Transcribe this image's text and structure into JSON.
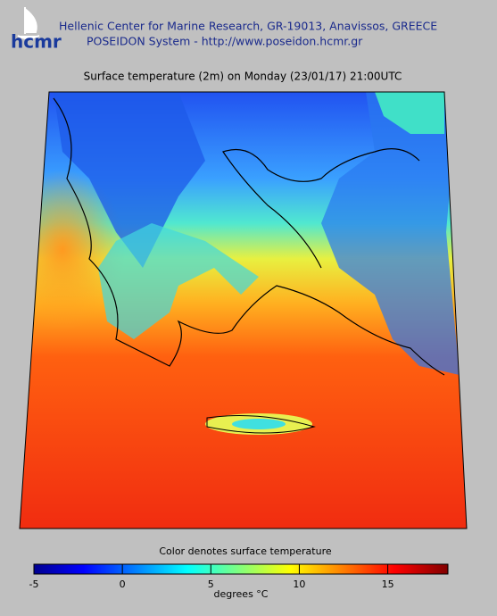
{
  "header": {
    "logo_text": "hcmr",
    "line1": "Hellenic Center for Marine Research, GR-19013, Anavissos, GREECE",
    "line2": "POSEIDON System - http://www.poseidon.hcmr.gr"
  },
  "map": {
    "title": "Surface temperature (2m) on Monday (23/01/17) 21:00UTC"
  },
  "colorbar": {
    "label": "Color denotes surface temperature",
    "range": [
      -5,
      18.4
    ],
    "ticks": [
      -5,
      0,
      5,
      10,
      15
    ],
    "unit_label": "degrees °C"
  }
}
